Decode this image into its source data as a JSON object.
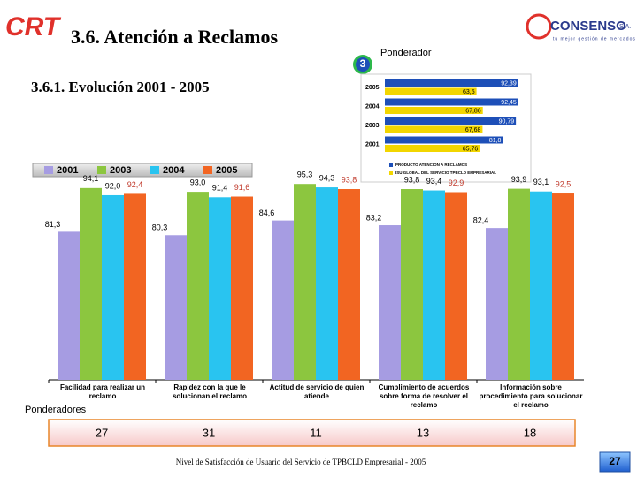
{
  "header": {
    "logo": "CRT",
    "title": "3.6. Atención a Reclamos",
    "brand": "CONSENSO",
    "brand_suffix": "S.A.",
    "tagline": "tu mejor gestión de mercados",
    "badge": "3",
    "badge_label": "Ponderador",
    "subtitle": "3.6.1. Evolución 2001 - 2005"
  },
  "chart_data": [
    {
      "type": "bar",
      "categories": [
        "Facilidad para realizar un reclamo",
        "Rapidez con la que le solucionan el reclamo",
        "Actitud de servicio de quien atiende",
        "Cumplimiento de acuerdos sobre forma de resolver el reclamo",
        "Información sobre procedimiento para solucionar el reclamo"
      ],
      "series": [
        {
          "name": "2001",
          "color": "#a69ce2",
          "values": [
            81.3,
            80.3,
            84.6,
            83.2,
            82.4
          ],
          "value_labels": [
            "81,3",
            "80,3",
            "84,6",
            "83,2",
            "82,4"
          ]
        },
        {
          "name": "2003",
          "color": "#8cc63f",
          "values": [
            94.1,
            93.0,
            95.3,
            93.8,
            93.9
          ],
          "value_labels": [
            "94,1",
            "93,0",
            "95,3",
            "93,8",
            "93,9"
          ]
        },
        {
          "name": "2004",
          "color": "#29c4f0",
          "values": [
            92.0,
            91.4,
            94.3,
            93.4,
            93.1
          ],
          "value_labels": [
            "92,0",
            "91,4",
            "94,3",
            "93,4",
            "93,1"
          ]
        },
        {
          "name": "2005",
          "color": "#f26522",
          "values": [
            92.4,
            91.6,
            93.8,
            92.9,
            92.5
          ],
          "value_labels": [
            "92,4",
            "91,6",
            "93,8",
            "92,9",
            "92,5"
          ]
        }
      ],
      "ylim": [
        38,
        100
      ]
    },
    {
      "type": "hbar",
      "categories": [
        "2005",
        "2004",
        "2003",
        "2001"
      ],
      "series": [
        {
          "name": "PRODUCTO ATENCION A RECLAMOS",
          "color": "#1d4fb8",
          "values": [
            92.39,
            92.45,
            90.79,
            81.8
          ],
          "value_labels": [
            "92,39",
            "92,45",
            "90,79",
            "81,8"
          ]
        },
        {
          "name": "ISU GLOBAL DEL SERVICIO TPBCLD EMPRESARIAL",
          "color": "#f2d600",
          "values": [
            63.5,
            67.86,
            67.68,
            65.76
          ],
          "value_labels": [
            "63,5",
            "67,86",
            "67,68",
            "65,76"
          ]
        }
      ],
      "xlim": [
        0,
        95
      ]
    }
  ],
  "ponderadores": {
    "label": "Ponderadores",
    "values": [
      27,
      31,
      11,
      13,
      18
    ]
  },
  "footer": {
    "text": "Nivel de Satisfacción de Usuario del Servicio de TPBCLD Empresarial - 2005",
    "page": "27"
  }
}
